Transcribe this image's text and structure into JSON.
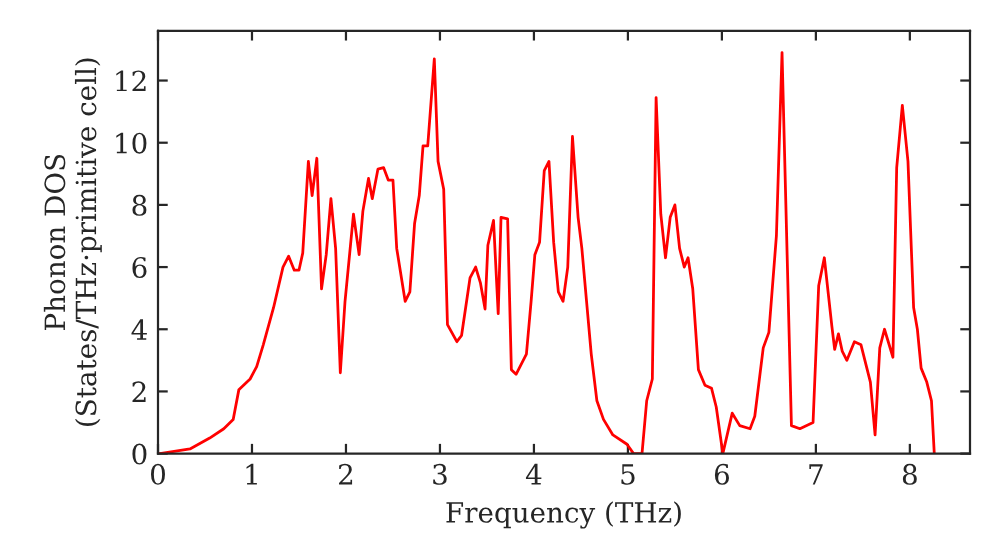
{
  "chart_data": {
    "type": "line",
    "xlabel": "Frequency (THz)",
    "ylabel": "Phonon DOS\n(States/THz·primitive cell)",
    "xlim": [
      0,
      8.64
    ],
    "ylim": [
      0,
      13.6
    ],
    "xticks": [
      0,
      1,
      2,
      3,
      4,
      5,
      6,
      7,
      8
    ],
    "yticks": [
      0,
      2,
      4,
      6,
      8,
      10,
      12
    ],
    "grid": false,
    "series": [
      {
        "color": "#ff0000",
        "x": [
          0.02,
          0.34,
          0.55,
          0.7,
          0.8,
          0.86,
          0.98,
          1.05,
          1.12,
          1.23,
          1.33,
          1.39,
          1.45,
          1.5,
          1.54,
          1.6,
          1.64,
          1.69,
          1.74,
          1.79,
          1.84,
          1.89,
          1.94,
          1.99,
          2.04,
          2.08,
          2.14,
          2.18,
          2.24,
          2.28,
          2.34,
          2.4,
          2.45,
          2.5,
          2.54,
          2.63,
          2.68,
          2.73,
          2.78,
          2.82,
          2.87,
          2.94,
          2.98,
          3.04,
          3.08,
          3.18,
          3.23,
          3.32,
          3.38,
          3.43,
          3.48,
          3.51,
          3.57,
          3.62,
          3.65,
          3.72,
          3.76,
          3.81,
          3.92,
          3.97,
          4.01,
          4.06,
          4.11,
          4.16,
          4.21,
          4.26,
          4.31,
          4.36,
          4.41,
          4.47,
          4.51,
          4.56,
          4.61,
          4.67,
          4.74,
          4.84,
          4.99,
          5.06,
          5.15,
          5.2,
          5.26,
          5.3,
          5.35,
          5.4,
          5.45,
          5.5,
          5.55,
          5.6,
          5.64,
          5.69,
          5.75,
          5.82,
          5.89,
          5.94,
          6.01,
          6.11,
          6.19,
          6.3,
          6.35,
          6.44,
          6.5,
          6.58,
          6.64,
          6.74,
          6.83,
          6.97,
          7.03,
          7.09,
          7.17,
          7.2,
          7.24,
          7.28,
          7.33,
          7.41,
          7.48,
          7.58,
          7.63,
          7.68,
          7.73,
          7.82,
          7.86,
          7.92,
          7.98,
          8.04,
          8.08,
          8.12,
          8.18,
          8.23,
          8.26
        ],
        "values": [
          0,
          0.15,
          0.5,
          0.8,
          1.1,
          2.05,
          2.4,
          2.8,
          3.5,
          4.7,
          6.0,
          6.35,
          5.9,
          5.9,
          6.45,
          9.4,
          8.3,
          9.5,
          5.3,
          6.4,
          8.2,
          6.6,
          2.6,
          4.9,
          6.45,
          7.7,
          6.4,
          7.8,
          8.85,
          8.2,
          9.15,
          9.2,
          8.8,
          8.8,
          6.6,
          4.9,
          5.2,
          7.4,
          8.3,
          9.9,
          9.9,
          12.7,
          9.4,
          8.5,
          4.15,
          3.6,
          3.8,
          5.65,
          6.0,
          5.5,
          4.65,
          6.7,
          7.5,
          4.5,
          7.6,
          7.55,
          2.7,
          2.55,
          3.2,
          4.9,
          6.4,
          6.8,
          9.1,
          9.4,
          6.8,
          5.2,
          4.9,
          6.0,
          10.2,
          7.6,
          6.6,
          4.9,
          3.2,
          1.7,
          1.1,
          0.6,
          0.3,
          0,
          0,
          1.7,
          2.4,
          11.45,
          7.7,
          6.3,
          7.6,
          8.0,
          6.6,
          6.0,
          6.3,
          5.3,
          2.7,
          2.2,
          2.1,
          1.5,
          0,
          1.3,
          0.9,
          0.8,
          1.2,
          3.4,
          3.9,
          7.0,
          12.9,
          0.9,
          0.8,
          1.0,
          5.4,
          6.3,
          4.1,
          3.35,
          3.85,
          3.3,
          3.0,
          3.6,
          3.5,
          2.3,
          0.6,
          3.4,
          4.0,
          3.1,
          9.2,
          11.2,
          9.4,
          4.7,
          4.0,
          2.75,
          2.3,
          1.7,
          0
        ]
      }
    ]
  }
}
